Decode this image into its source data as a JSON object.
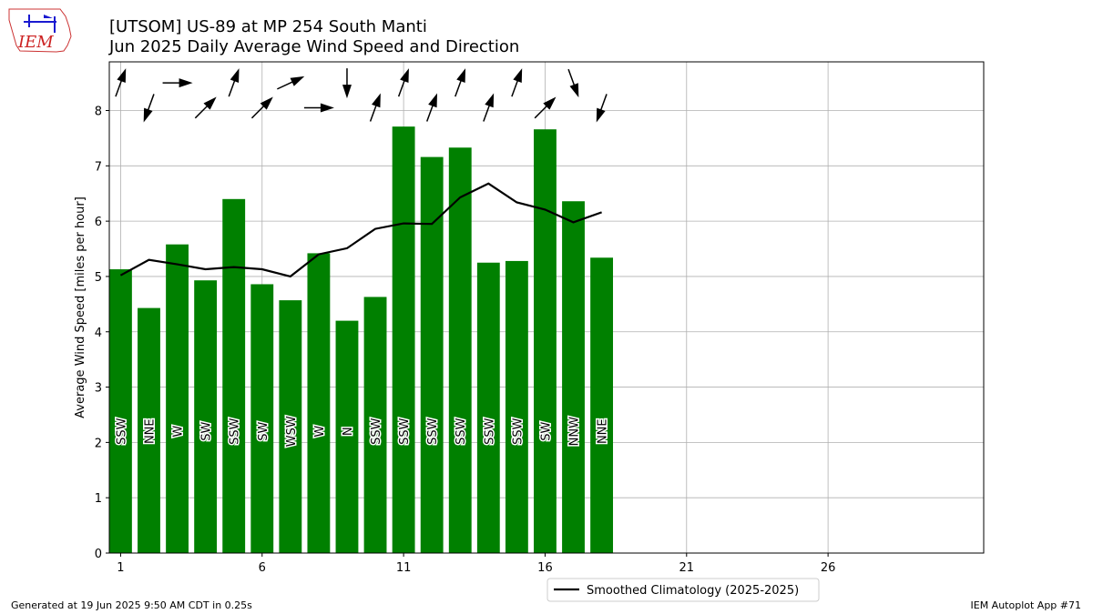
{
  "logo_text": "IEM",
  "footer": {
    "generated": "Generated at 19 Jun 2025 9:50 AM CDT in 0.25s",
    "app": "IEM Autoplot App #71"
  },
  "chart_data": {
    "type": "bar",
    "title": "[UTSOM] US-89 at MP 254 South Manti",
    "subtitle": "Jun 2025 Daily Average Wind Speed and Direction",
    "xlabel": "",
    "ylabel": "Average Wind Speed [miles per hour]",
    "xlim": [
      0.6,
      31.5
    ],
    "ylim": [
      0,
      8.88
    ],
    "xticks": [
      1,
      6,
      11,
      16,
      21,
      26
    ],
    "yticks": [
      0,
      1,
      2,
      3,
      4,
      5,
      6,
      7,
      8
    ],
    "grid": true,
    "bar_color": "#008000",
    "days": [
      1,
      2,
      3,
      4,
      5,
      6,
      7,
      8,
      9,
      10,
      11,
      12,
      13,
      14,
      15,
      16,
      17,
      18
    ],
    "speed": [
      5.13,
      4.43,
      5.58,
      4.93,
      6.4,
      4.86,
      4.57,
      5.42,
      4.2,
      4.63,
      7.71,
      7.16,
      7.33,
      5.25,
      5.28,
      7.66,
      6.36,
      5.34
    ],
    "direction_labels": [
      "SSW",
      "NNE",
      "W",
      "SW",
      "SSW",
      "SW",
      "WSW",
      "W",
      "N",
      "SSW",
      "SSW",
      "SSW",
      "SSW",
      "SSW",
      "SSW",
      "SW",
      "NNW",
      "NNE"
    ],
    "direction_deg": [
      200,
      20,
      270,
      225,
      200,
      225,
      245,
      270,
      0,
      200,
      200,
      200,
      200,
      200,
      200,
      225,
      340,
      20
    ],
    "series": [
      {
        "name": "Smoothed Climatology (2025-2025)",
        "type": "line",
        "color": "#000000",
        "values": [
          5.02,
          5.3,
          5.22,
          5.13,
          5.17,
          5.13,
          5.0,
          5.4,
          5.51,
          5.86,
          5.96,
          5.95,
          6.43,
          6.68,
          6.34,
          6.21,
          5.98,
          6.16
        ]
      }
    ],
    "legend_placement": "lower-right"
  }
}
